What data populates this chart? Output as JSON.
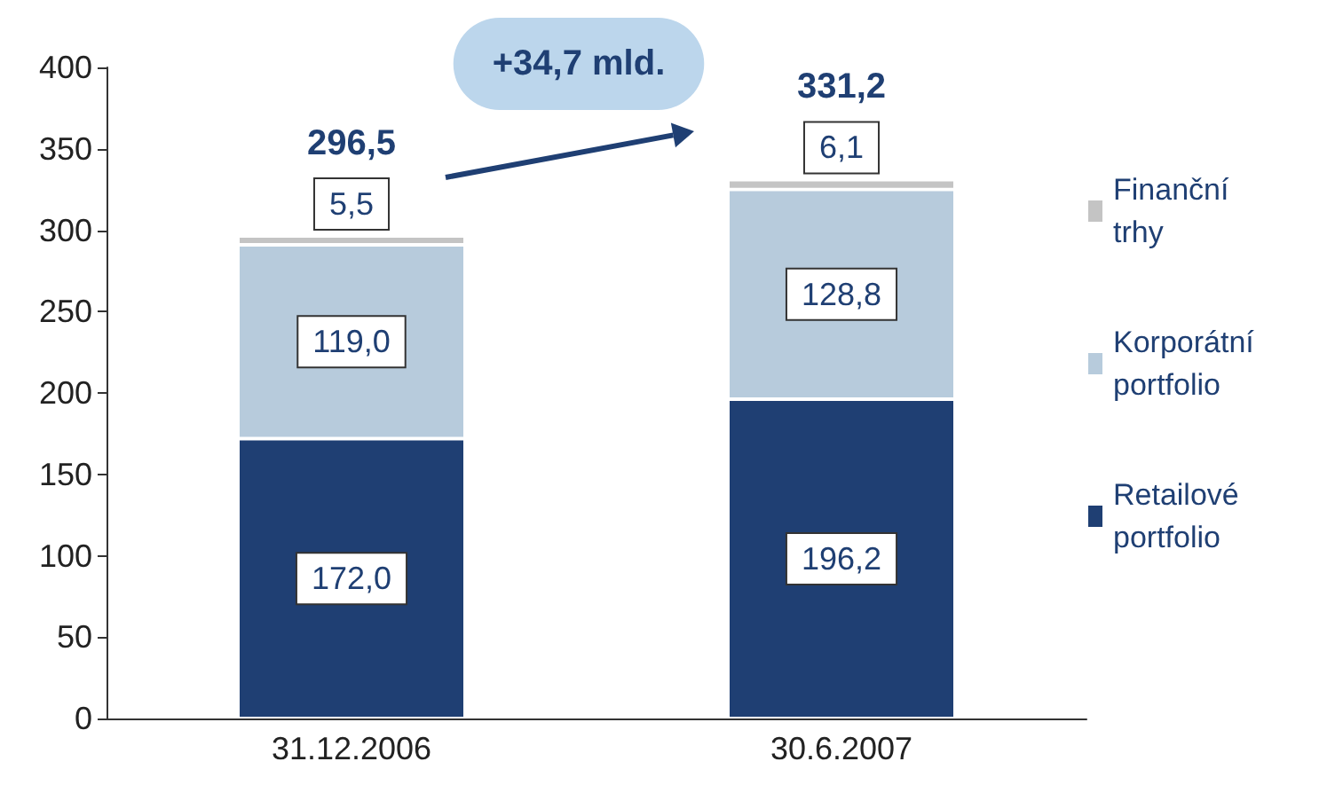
{
  "chart_data": {
    "type": "bar",
    "stacked": true,
    "categories": [
      "31.12.2006",
      "30.6.2007"
    ],
    "series": [
      {
        "name": "Retailové portfolio",
        "color": "#1f3f73",
        "values": [
          172.0,
          196.2
        ],
        "value_labels": [
          "172,0",
          "196,2"
        ]
      },
      {
        "name": "Korporátní portfolio",
        "color": "#b7cbdc",
        "values": [
          119.0,
          128.8
        ],
        "value_labels": [
          "119,0",
          "128,8"
        ]
      },
      {
        "name": "Finanční trhy",
        "color": "#c4c4c4",
        "values": [
          5.5,
          6.1
        ],
        "value_labels": [
          "5,5",
          "6,1"
        ]
      }
    ],
    "totals": [
      "296,5",
      "331,2"
    ],
    "annotations": [
      "+34,7 mld."
    ],
    "ylim": [
      0,
      400
    ],
    "yticks": [
      0,
      50,
      100,
      150,
      200,
      250,
      300,
      350,
      400
    ],
    "grid": false,
    "legend": "right"
  }
}
